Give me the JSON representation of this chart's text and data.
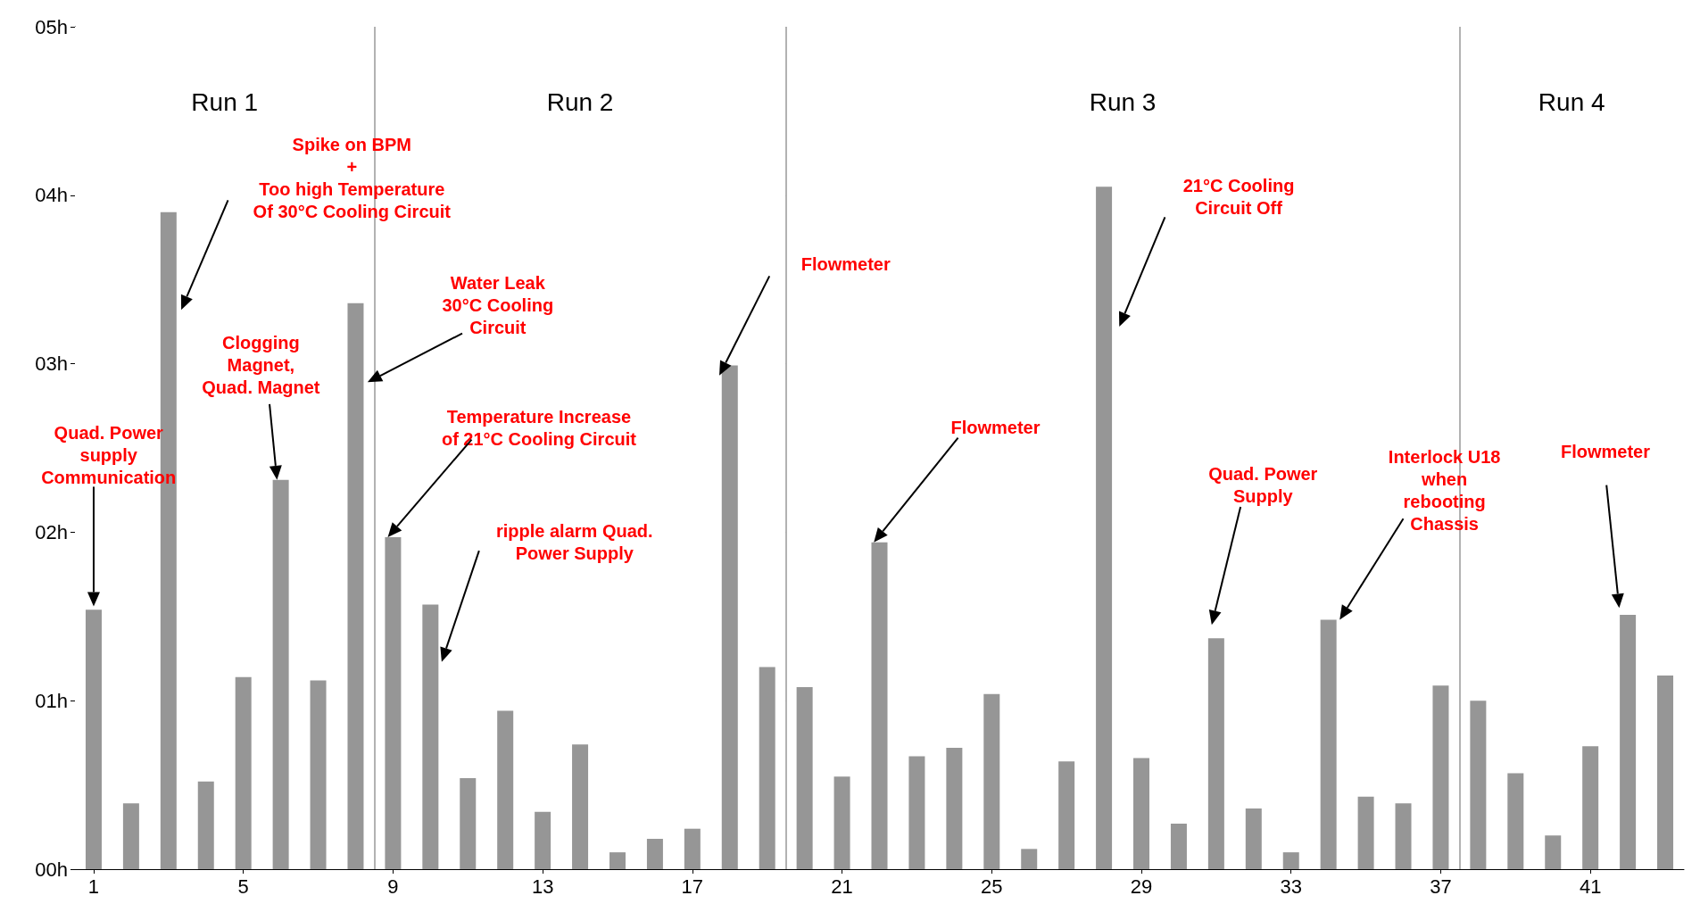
{
  "chart_data": {
    "type": "bar",
    "x": [
      1,
      2,
      3,
      4,
      5,
      6,
      7,
      8,
      9,
      10,
      11,
      12,
      13,
      14,
      15,
      16,
      17,
      18,
      19,
      20,
      21,
      22,
      23,
      24,
      25,
      26,
      27,
      28,
      29,
      30,
      31,
      32,
      33,
      34,
      35,
      36,
      37,
      38,
      39,
      40,
      41,
      42,
      43
    ],
    "values": [
      1.54,
      0.39,
      3.9,
      0.52,
      1.14,
      2.31,
      1.12,
      3.36,
      1.97,
      1.57,
      0.54,
      0.94,
      0.34,
      0.74,
      0.1,
      0.18,
      0.24,
      2.99,
      1.2,
      1.08,
      0.55,
      1.94,
      0.67,
      0.72,
      1.04,
      0.12,
      0.64,
      4.05,
      0.66,
      0.27,
      1.37,
      0.36,
      0.1,
      1.48,
      0.43,
      0.39,
      1.09,
      1.0,
      0.57,
      0.2,
      0.73,
      1.51,
      1.15
    ],
    "color": "#969696",
    "xlim": [
      0.5,
      43.5
    ],
    "xticks": [
      1,
      5,
      9,
      13,
      17,
      21,
      25,
      29,
      33,
      37,
      41
    ],
    "ylim": [
      0,
      5
    ],
    "yticks": [
      {
        "value": 0,
        "label": "00h"
      },
      {
        "value": 1,
        "label": "01h"
      },
      {
        "value": 2,
        "label": "02h"
      },
      {
        "value": 3,
        "label": "03h"
      },
      {
        "value": 4,
        "label": "04h"
      },
      {
        "value": 5,
        "label": "05h"
      }
    ],
    "grid": "y",
    "ref_lines": [
      {
        "axis": "x",
        "value": 8.5,
        "color": "#999999"
      },
      {
        "axis": "x",
        "value": 19.5,
        "color": "#999999"
      },
      {
        "axis": "x",
        "value": 37.5,
        "color": "#999999"
      }
    ],
    "bands": [
      {
        "axis": "x",
        "from": 0.5,
        "to": 8.5,
        "label": "Run 1",
        "color": "#ffffff"
      },
      {
        "axis": "x",
        "from": 8.5,
        "to": 19.5,
        "label": "Run 2",
        "color": "#ffffff"
      },
      {
        "axis": "x",
        "from": 19.5,
        "to": 37.5,
        "label": "Run 3",
        "color": "#ffffff"
      },
      {
        "axis": "x",
        "from": 37.5,
        "to": 43.5,
        "label": "Run 4",
        "color": "#ffffff"
      }
    ],
    "annotations": [
      "Quad. Power\nsupply\nCommunication",
      "Spike on BPM\n+\nToo high Temperature\nOf 30°C Cooling Circuit",
      "Clogging\nMagnet,\nQuad. Magnet",
      "Water Leak\n30°C Cooling\nCircuit",
      "Temperature Increase\nof 21°C Cooling Circuit",
      "ripple alarm Quad.\nPower Supply",
      "Flowmeter",
      "Flowmeter",
      "21°C Cooling\nCircuit Off",
      "Quad. Power\nSupply",
      "Interlock U18\nwhen\nrebooting\nChassis",
      "Flowmeter"
    ]
  }
}
